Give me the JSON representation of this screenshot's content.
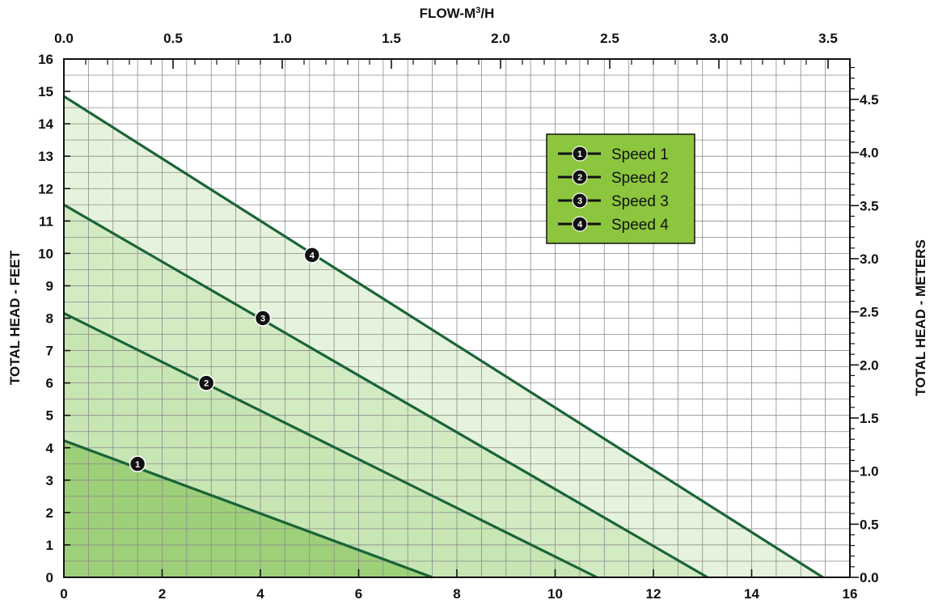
{
  "chart_data": {
    "type": "line",
    "x_axis_top": {
      "label": "FLOW-M",
      "label_sup": "3",
      "label_suffix": "/H",
      "range": [
        0,
        3.6
      ],
      "ticks": [
        "0.0",
        "0.5",
        "1.0",
        "1.5",
        "2.0",
        "2.5",
        "3.0",
        "3.5"
      ]
    },
    "x_axis_bottom": {
      "range": [
        0,
        16
      ],
      "ticks": [
        "0",
        "2",
        "4",
        "6",
        "8",
        "10",
        "12",
        "14",
        "16"
      ]
    },
    "y_axis_left": {
      "label": "TOTAL HEAD - FEET",
      "range": [
        0,
        16
      ],
      "ticks": [
        "0",
        "1",
        "2",
        "3",
        "4",
        "5",
        "6",
        "7",
        "8",
        "9",
        "10",
        "11",
        "12",
        "13",
        "14",
        "15",
        "16"
      ]
    },
    "y_axis_right": {
      "label": "TOTAL HEAD - METERS",
      "range": [
        0,
        4.88
      ],
      "ticks": [
        "0.0",
        "0.5",
        "1.0",
        "1.5",
        "2.0",
        "2.5",
        "3.0",
        "3.5",
        "4.0",
        "4.5"
      ]
    },
    "grid": true,
    "legend_position": "top-right",
    "series": [
      {
        "name": "Speed 1",
        "marker": "1",
        "x": [
          0,
          7.5
        ],
        "y": [
          4.22,
          0
        ],
        "marker_point": [
          1.5,
          3.5
        ],
        "fill": "#9ed07a"
      },
      {
        "name": "Speed 2",
        "marker": "2",
        "x": [
          0,
          10.85
        ],
        "y": [
          8.15,
          0
        ],
        "marker_point": [
          2.9,
          6.0
        ],
        "fill": "#c8e5b4"
      },
      {
        "name": "Speed 3",
        "marker": "3",
        "x": [
          0,
          13.1
        ],
        "y": [
          11.5,
          0
        ],
        "marker_point": [
          4.05,
          8.0
        ],
        "fill": "#d3ebc3"
      },
      {
        "name": "Speed 4",
        "marker": "4",
        "x": [
          0,
          15.45
        ],
        "y": [
          14.85,
          0
        ],
        "marker_point": [
          5.05,
          9.95
        ],
        "fill": "#e6f3dc"
      }
    ],
    "colors": {
      "curve": "#1a6438",
      "legend_bg": "#8cc63f",
      "grid": "#8a8a8a"
    }
  }
}
